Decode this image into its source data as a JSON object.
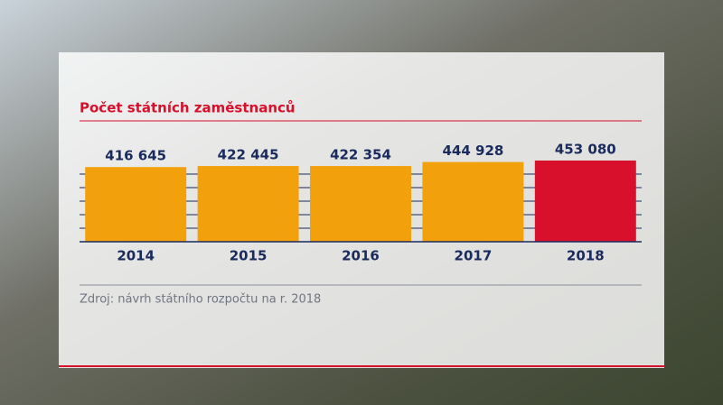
{
  "chart_data": {
    "type": "bar",
    "title": "Počet státních zaměstnanců",
    "categories": [
      "2014",
      "2015",
      "2016",
      "2017",
      "2018"
    ],
    "values": [
      416645,
      422445,
      422354,
      444928,
      453080
    ],
    "value_labels": [
      "416 645",
      "422 445",
      "422 354",
      "444 928",
      "453 080"
    ],
    "colors": [
      "#f2a10c",
      "#f2a10c",
      "#f2a10c",
      "#f2a10c",
      "#d8102b"
    ],
    "ylim": [
      0,
      460000
    ],
    "source": "Zdroj: návrh státního rozpočtu na r. 2018"
  }
}
